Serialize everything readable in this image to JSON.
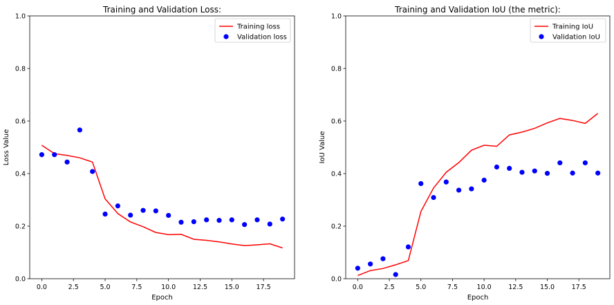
{
  "chart_data": [
    {
      "type": "line",
      "title": "Training and Validation Loss:",
      "xlabel": "Epoch",
      "ylabel": "Loss Value",
      "xlim": [
        -0.95,
        19.95
      ],
      "ylim": [
        0,
        1.0
      ],
      "xticks": [
        "0.0",
        "2.5",
        "5.0",
        "7.5",
        "10.0",
        "12.5",
        "15.0",
        "17.5"
      ],
      "xtick_values": [
        0,
        2.5,
        5,
        7.5,
        10,
        12.5,
        15,
        17.5
      ],
      "yticks": [
        "0.0",
        "0.2",
        "0.4",
        "0.6",
        "0.8",
        "1.0"
      ],
      "ytick_values": [
        0,
        0.2,
        0.4,
        0.6,
        0.8,
        1.0
      ],
      "legend_position": "top-right",
      "series": [
        {
          "name": "Training loss",
          "kind": "line",
          "color": "#ff0000",
          "x": [
            0,
            1,
            2,
            3,
            4,
            5,
            6,
            7,
            8,
            9,
            10,
            11,
            12,
            13,
            14,
            15,
            16,
            17,
            18,
            19
          ],
          "values": [
            0.508,
            0.476,
            0.469,
            0.46,
            0.444,
            0.304,
            0.248,
            0.216,
            0.198,
            0.176,
            0.168,
            0.169,
            0.15,
            0.146,
            0.14,
            0.132,
            0.126,
            0.129,
            0.133,
            0.117
          ]
        },
        {
          "name": "Validation loss",
          "kind": "scatter",
          "color": "#0000ff",
          "x": [
            0,
            1,
            2,
            3,
            4,
            5,
            6,
            7,
            8,
            9,
            10,
            11,
            12,
            13,
            14,
            15,
            16,
            17,
            18,
            19
          ],
          "values": [
            0.472,
            0.472,
            0.444,
            0.566,
            0.408,
            0.246,
            0.277,
            0.242,
            0.26,
            0.258,
            0.241,
            0.215,
            0.217,
            0.224,
            0.222,
            0.224,
            0.206,
            0.224,
            0.208,
            0.227
          ]
        }
      ]
    },
    {
      "type": "line",
      "title": "Training and Validation IoU (the metric):",
      "xlabel": "Epoch",
      "ylabel": "IoU Value",
      "xlim": [
        -0.95,
        19.95
      ],
      "ylim": [
        0,
        1.0
      ],
      "xticks": [
        "0.0",
        "2.5",
        "5.0",
        "7.5",
        "10.0",
        "12.5",
        "15.0",
        "17.5"
      ],
      "xtick_values": [
        0,
        2.5,
        5,
        7.5,
        10,
        12.5,
        15,
        17.5
      ],
      "yticks": [
        "0.0",
        "0.2",
        "0.4",
        "0.6",
        "0.8",
        "1.0"
      ],
      "ytick_values": [
        0,
        0.2,
        0.4,
        0.6,
        0.8,
        1.0
      ],
      "legend_position": "top-right",
      "series": [
        {
          "name": "Training IoU",
          "kind": "line",
          "color": "#ff0000",
          "x": [
            0,
            1,
            2,
            3,
            4,
            5,
            6,
            7,
            8,
            9,
            10,
            11,
            12,
            13,
            14,
            15,
            16,
            17,
            18,
            19
          ],
          "values": [
            0.012,
            0.031,
            0.039,
            0.053,
            0.069,
            0.256,
            0.345,
            0.405,
            0.442,
            0.489,
            0.508,
            0.504,
            0.547,
            0.558,
            0.572,
            0.593,
            0.61,
            0.602,
            0.591,
            0.629
          ]
        },
        {
          "name": "Validation IoU",
          "kind": "scatter",
          "color": "#0000ff",
          "x": [
            0,
            1,
            2,
            3,
            4,
            5,
            6,
            7,
            8,
            9,
            10,
            11,
            12,
            13,
            14,
            15,
            16,
            17,
            18,
            19
          ],
          "values": [
            0.04,
            0.056,
            0.076,
            0.016,
            0.121,
            0.362,
            0.309,
            0.368,
            0.337,
            0.342,
            0.375,
            0.425,
            0.42,
            0.405,
            0.41,
            0.401,
            0.441,
            0.402,
            0.441,
            0.402
          ]
        }
      ]
    }
  ]
}
